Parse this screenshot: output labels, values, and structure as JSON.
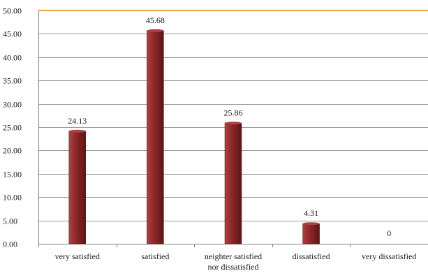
{
  "chart_data": {
    "type": "bar",
    "categories": [
      "very satisfied",
      "satisfied",
      "neighter satisfied nor dissatisfied",
      "dissatisfied",
      "very dissatisfied"
    ],
    "category_label_lines": [
      [
        "very satisfied"
      ],
      [
        "satisfied"
      ],
      [
        "neighter satisfied",
        "nor dissatisfied"
      ],
      [
        "dissatisfied"
      ],
      [
        "very dissatisfied"
      ]
    ],
    "values": [
      24.13,
      45.68,
      25.86,
      4.31,
      0
    ],
    "data_labels": [
      "24.13",
      "45.68",
      "25.86",
      "4.31",
      "0"
    ],
    "ylim": [
      0,
      50
    ],
    "y_ticks": [
      "0.00",
      "5.00",
      "10.00",
      "15.00",
      "20.00",
      "25.00",
      "30.00",
      "35.00",
      "40.00",
      "45.00",
      "50.00"
    ],
    "grid": true,
    "legend": "none",
    "title": "",
    "xlabel": "",
    "ylabel": "",
    "colors": {
      "bar": "#8b2727",
      "bar_highlight": "#b04040",
      "bar_shadow": "#5a1515",
      "top_border": "#f0a040",
      "gridline": "#9a9a9a",
      "axis": "#808080"
    }
  }
}
